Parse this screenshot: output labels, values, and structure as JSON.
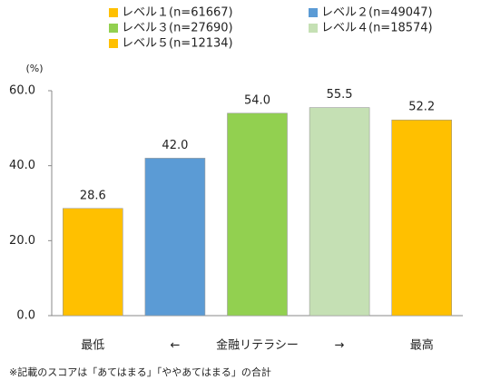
{
  "chart_data": {
    "type": "bar",
    "legend": [
      {
        "name": "レベル１(n=61667)",
        "color": "#ffc000"
      },
      {
        "name": "レベル２(n=49047)",
        "color": "#5b9bd5"
      },
      {
        "name": "レベル３(n=27690)",
        "color": "#92d050"
      },
      {
        "name": "レベル４(n=18574)",
        "color": "#c5e0b4"
      },
      {
        "name": "レベル５(n=12134)",
        "color": "#ffc000"
      }
    ],
    "y_unit": "(%)",
    "categories": [
      "最低",
      "←",
      "金融リテラシー",
      "→",
      "最高"
    ],
    "values": [
      28.6,
      42.0,
      54.0,
      55.5,
      52.2
    ],
    "value_labels": [
      "28.6",
      "42.0",
      "54.0",
      "55.5",
      "52.2"
    ],
    "colors": [
      "#ffc000",
      "#5b9bd5",
      "#92d050",
      "#c5e0b4",
      "#ffc000"
    ],
    "ylim": [
      0,
      60
    ],
    "yticks": [
      {
        "value": 0,
        "label": "0.0"
      },
      {
        "value": 20,
        "label": "20.0"
      },
      {
        "value": 40,
        "label": "40.0"
      },
      {
        "value": 60,
        "label": "60.0"
      }
    ],
    "footnote": "※記載のスコアは「あてはまる」「ややあてはまる」の合計"
  }
}
